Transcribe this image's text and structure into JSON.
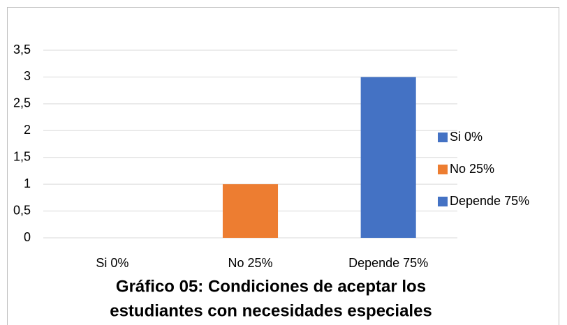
{
  "chart_data": {
    "type": "bar",
    "title": [
      "Gráfico 05: Condiciones de aceptar los",
      "estudiantes con necesidades especiales"
    ],
    "categories": [
      "Si 0%",
      "No 25%",
      "Depende 75%"
    ],
    "values": [
      0,
      1,
      3
    ],
    "colors": [
      "#4472c4",
      "#ed7d31",
      "#4472c4"
    ],
    "ylim": [
      0,
      3.5
    ],
    "yticks": [
      0,
      {
        "value": 0.5,
        "label": "0,5"
      },
      1,
      {
        "value": 1.5,
        "label": "1,5"
      },
      2,
      {
        "value": 2.5,
        "label": "2,5"
      },
      3,
      {
        "value": 3.5,
        "label": "3,5"
      }
    ],
    "grid": true,
    "legend": "right"
  }
}
